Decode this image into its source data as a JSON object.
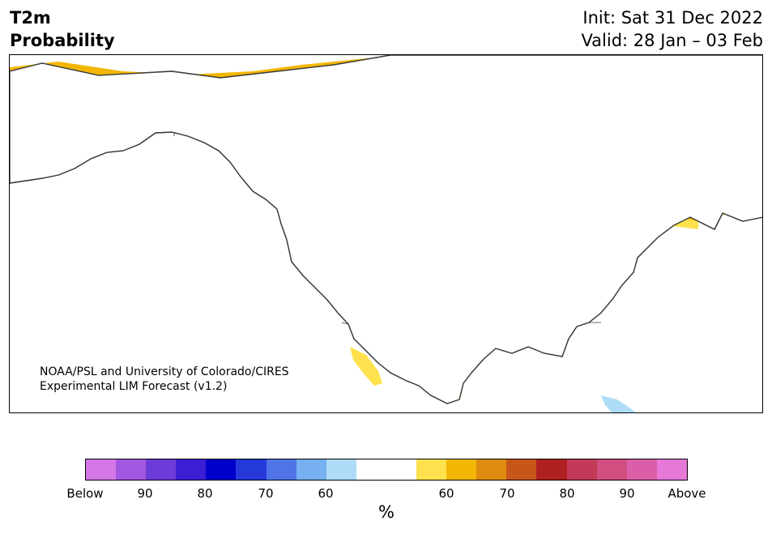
{
  "title": {
    "line1": "T2m",
    "line2": "Probability"
  },
  "header_right": {
    "init": "Init: Sat 31 Dec 2022",
    "valid": "Valid: 28 Jan – 03 Feb"
  },
  "credit": {
    "line1": "NOAA/PSL and University of Colorado/CIRES",
    "line2": "Experimental LIM Forecast (v1.2)"
  },
  "map": {
    "region": "North America",
    "colors": {
      "land": "#ffffff",
      "water": "#ffffff",
      "border": "#3a3a3a",
      "above_50_60": "#ffe14d",
      "above_60_65": "#f2b705",
      "above_65_70": "#df8a10",
      "below_50_60": "#aedcf6"
    }
  },
  "colorbar": {
    "colors": [
      "#d478e8",
      "#a157e0",
      "#6d3bd8",
      "#3a1fd4",
      "#0000cc",
      "#2538d9",
      "#4f74e8",
      "#76b0f0",
      "#aedcf6",
      "#ffffff",
      "#ffffff",
      "#ffe14d",
      "#f2b705",
      "#df8a10",
      "#c7561a",
      "#b02020",
      "#c23a58",
      "#d04f80",
      "#db5fa8",
      "#e678d8"
    ],
    "ticks": [
      "Below",
      "90",
      "80",
      "70",
      "60",
      "60",
      "70",
      "80",
      "90",
      "Above"
    ],
    "unit": "%"
  }
}
